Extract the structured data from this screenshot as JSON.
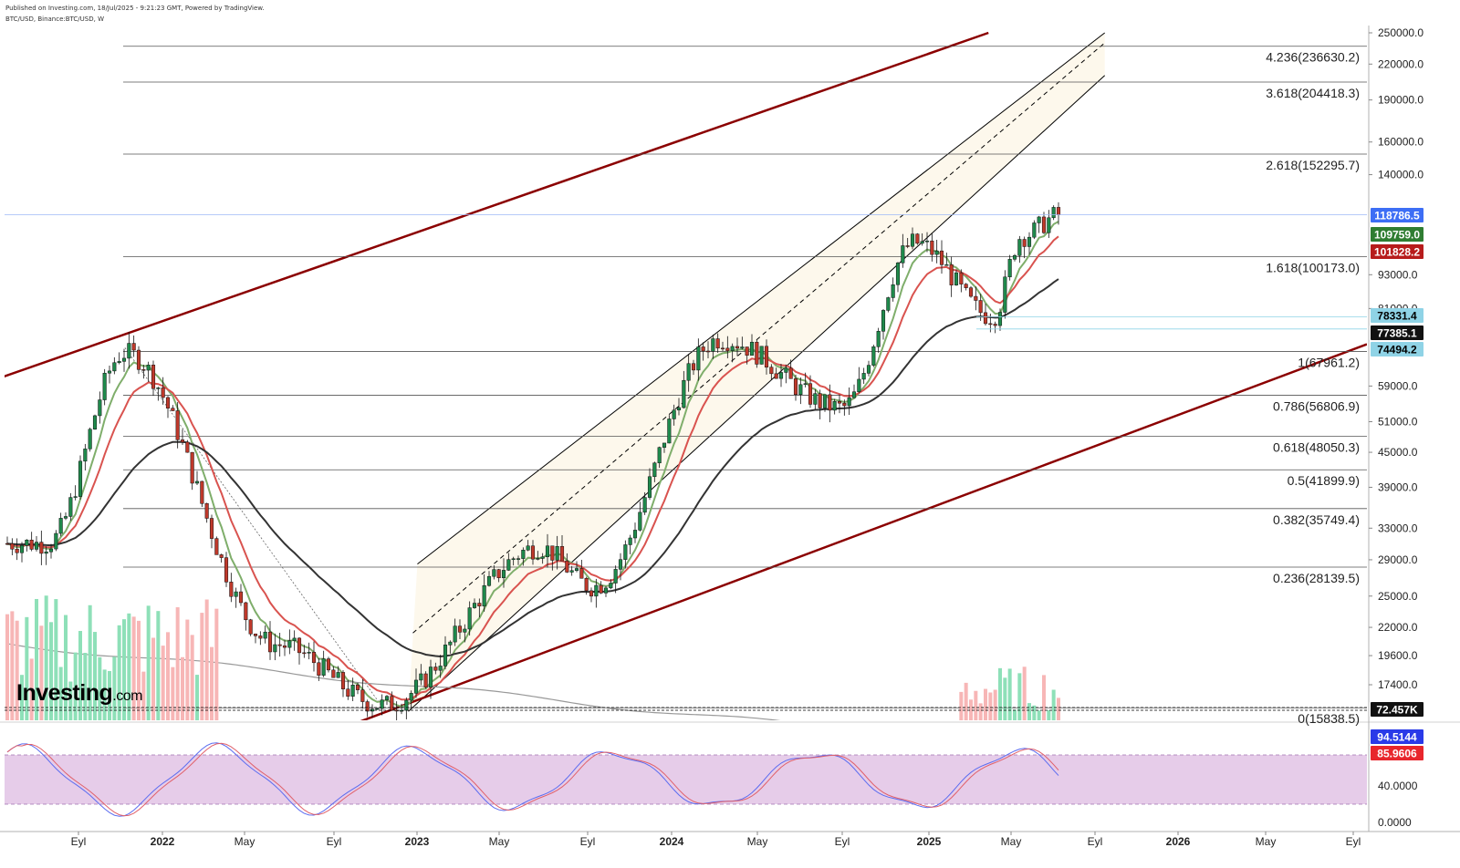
{
  "header": {
    "published": "Published on Investing.com, 18/Jul/2025 - 9:21:23 GMT, Powered by TradingView.",
    "symbol": "BTC/USD, Binance:BTC/USD, W"
  },
  "logo": {
    "text": "Investing",
    "suffix": ".com"
  },
  "colors": {
    "channel_outer": "#8b0000",
    "channel_fill": "#fdf8ec",
    "ma_fast": "#7fae6b",
    "ma_mid": "#d9534f",
    "ma_slow": "#333333",
    "up": "#1f8a4c",
    "down": "#c0392b",
    "stoch_k": "#5b6cf0",
    "stoch_d": "#e0606a",
    "stoch_band": "#e6cce9"
  },
  "chart_data": {
    "type": "line",
    "title": "",
    "x_ticks": [
      "Eyl",
      "2022",
      "May",
      "Eyl",
      "2023",
      "May",
      "Eyl",
      "2024",
      "May",
      "Eyl",
      "2025",
      "May",
      "Eyl",
      "2026",
      "May",
      "Eyl"
    ],
    "y_axis": {
      "scale": "log",
      "ticks": [
        "250000.0",
        "220000.0",
        "190000.0",
        "160000.0",
        "140000.0",
        "93000.0",
        "81000.0",
        "59000.0",
        "51000.0",
        "45000.0",
        "39000.0",
        "33000.0",
        "29000.0",
        "25000.0",
        "22000.0",
        "19600.0",
        "17400.0"
      ]
    },
    "fib_levels": [
      {
        "label": "4.236(236630.2)",
        "value": 236630.2
      },
      {
        "label": "3.618(204418.3)",
        "value": 204418.3
      },
      {
        "label": "2.618(152295.7)",
        "value": 152295.7
      },
      {
        "label": "1.618(100173.0)",
        "value": 100173.0
      },
      {
        "label": "1(67961.2)",
        "value": 67961.2
      },
      {
        "label": "0.786(56806.9)",
        "value": 56806.9
      },
      {
        "label": "0.618(48050.3)",
        "value": 48050.3
      },
      {
        "label": "0.5(41899.9)",
        "value": 41899.9
      },
      {
        "label": "0.382(35749.4)",
        "value": 35749.4
      },
      {
        "label": "0.236(28139.5)",
        "value": 28139.5
      },
      {
        "label": "0(15838.5)",
        "value": 15838.5
      }
    ],
    "price_tags": [
      {
        "text": "118786.5",
        "value": 118786.5,
        "bg": "#3d6ef5",
        "fg": "#ffffff"
      },
      {
        "text": "109759.0",
        "value": 109759.0,
        "bg": "#2f7d32",
        "fg": "#ffffff"
      },
      {
        "text": "101828.2",
        "value": 101828.2,
        "bg": "#b71c1c",
        "fg": "#ffffff"
      },
      {
        "text": "78331.4",
        "value": 78331.4,
        "bg": "#8fd3e6",
        "fg": "#000000"
      },
      {
        "text": "77385.1",
        "value": 77385.1,
        "bg": "#111111",
        "fg": "#ffffff"
      },
      {
        "text": "74494.2",
        "value": 74494.2,
        "bg": "#8fd3e6",
        "fg": "#000000"
      }
    ],
    "volume_tag": {
      "text": "72.457K",
      "bg": "#111111",
      "fg": "#ffffff"
    },
    "stochastic": {
      "ticks": [
        "40.0000",
        "0.0000"
      ],
      "tags": [
        {
          "text": "94.5144",
          "value": 94.5144,
          "bg": "#2a3ae8",
          "fg": "#ffffff"
        },
        {
          "text": "85.9606",
          "value": 85.9606,
          "bg": "#e8262c",
          "fg": "#ffffff"
        }
      ],
      "band": [
        20,
        80
      ]
    },
    "anchor_points": [
      {
        "date": "2021-07-19",
        "close": 31000
      },
      {
        "date": "2021-11-08",
        "close": 67500
      },
      {
        "date": "2022-06-13",
        "close": 20500
      },
      {
        "date": "2022-11-14",
        "close": 16000
      },
      {
        "date": "2023-06-26",
        "close": 30500
      },
      {
        "date": "2023-09-11",
        "close": 26000
      },
      {
        "date": "2024-03-11",
        "close": 71500
      },
      {
        "date": "2024-09-02",
        "close": 54000
      },
      {
        "date": "2024-12-16",
        "close": 106000
      },
      {
        "date": "2025-04-07",
        "close": 78500
      },
      {
        "date": "2025-05-19",
        "close": 109000
      },
      {
        "date": "2025-07-14",
        "close": 118786.5
      }
    ]
  }
}
